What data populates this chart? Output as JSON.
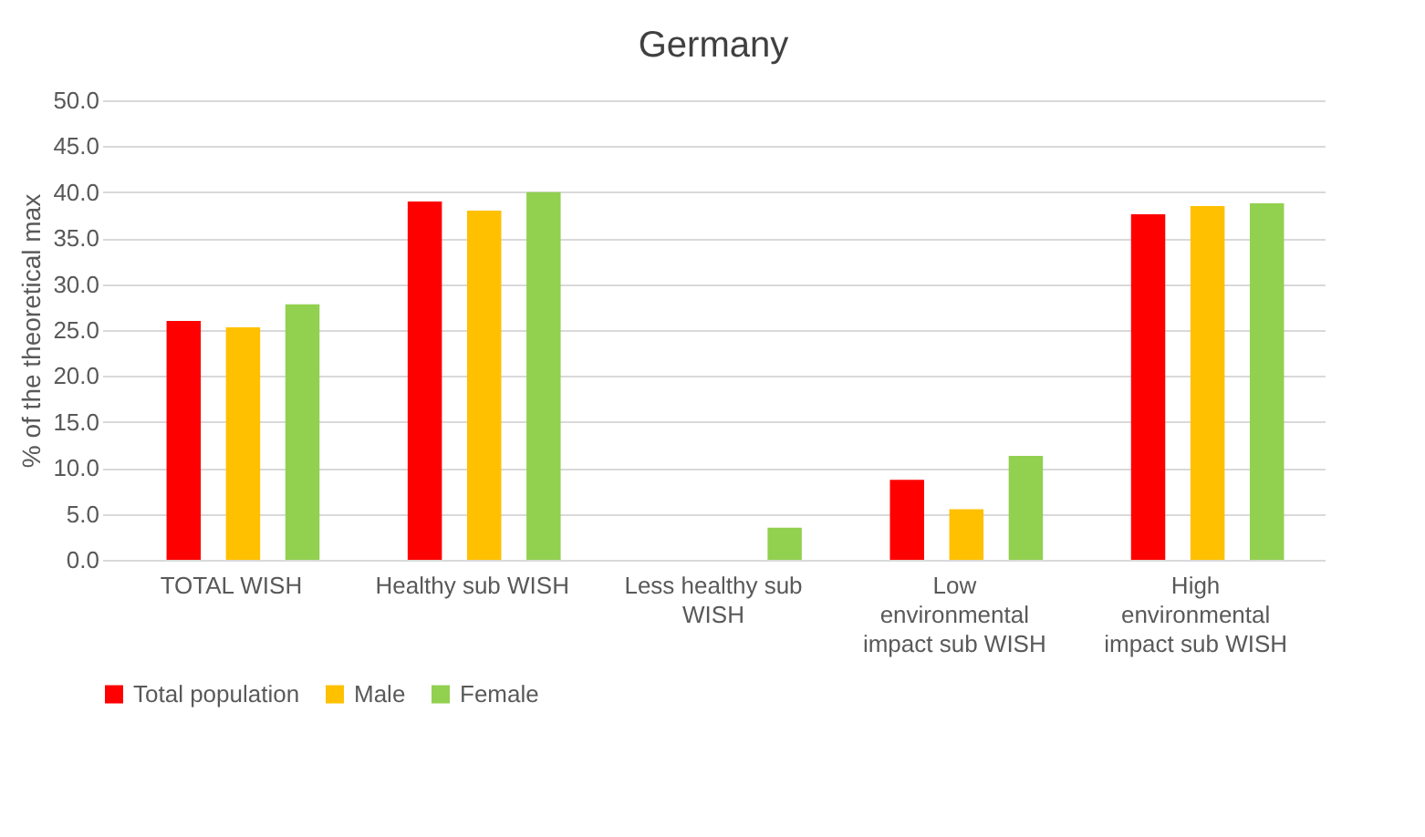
{
  "chart_data": {
    "type": "bar",
    "title": "Germany",
    "ylabel": "% of the theoretical max",
    "categories": [
      "TOTAL WISH",
      "Healthy sub WISH",
      "Less healthy sub WISH",
      "Low environmental impact sub WISH",
      "High environmental impact sub WISH"
    ],
    "series": [
      {
        "name": "Total population",
        "color": "#ff0000",
        "values": [
          26.0,
          39.0,
          null,
          8.7,
          37.6
        ]
      },
      {
        "name": "Male",
        "color": "#ffc000",
        "values": [
          25.3,
          38.0,
          null,
          5.5,
          38.5
        ]
      },
      {
        "name": "Female",
        "color": "#92d050",
        "values": [
          27.8,
          40.0,
          3.5,
          11.3,
          38.8
        ]
      }
    ],
    "ylim": [
      0,
      50
    ],
    "yticks": [
      {
        "value": 0,
        "label": "0.0"
      },
      {
        "value": 5,
        "label": "5.0"
      },
      {
        "value": 10,
        "label": "10.0"
      },
      {
        "value": 15,
        "label": "15.0"
      },
      {
        "value": 20,
        "label": "20.0"
      },
      {
        "value": 25,
        "label": "25.0"
      },
      {
        "value": 30,
        "label": "30.0"
      },
      {
        "value": 35,
        "label": "35.0"
      },
      {
        "value": 40,
        "label": "40.0"
      },
      {
        "value": 45,
        "label": "45.0"
      },
      {
        "value": 50,
        "label": "50.0"
      }
    ],
    "grid": "y",
    "legend": "bottom"
  }
}
